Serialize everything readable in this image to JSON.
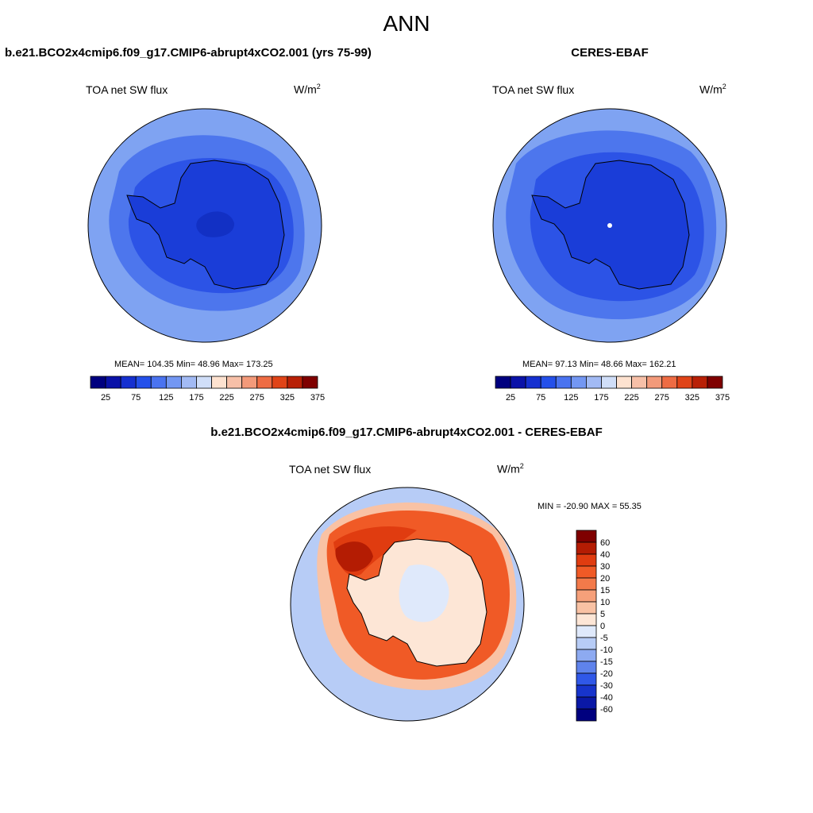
{
  "figure": {
    "title": "ANN"
  },
  "panels": {
    "model": {
      "title": "b.e21.BCO2x4cmip6.f09_g17.CMIP6-abrupt4xCO2.001 (yrs 75-99)",
      "variable": "TOA net SW flux",
      "units": "W/m",
      "units_sup": "2",
      "stats": "MEAN= 104.35  Min=  48.96  Max= 173.25"
    },
    "obs": {
      "title": "CERES-EBAF",
      "variable": "TOA net SW flux",
      "units": "W/m",
      "units_sup": "2",
      "stats": "MEAN=  97.13  Min=  48.66  Max= 162.21"
    },
    "diff": {
      "title": "b.e21.BCO2x4cmip6.f09_g17.CMIP6-abrupt4xCO2.001 - CERES-EBAF",
      "variable": "TOA net SW flux",
      "units": "W/m",
      "units_sup": "2",
      "stats": "MIN = -20.90 MAX =  55.35"
    }
  },
  "colorbars": {
    "main": {
      "tick_labels": [
        "25",
        "75",
        "125",
        "175",
        "225",
        "275",
        "325",
        "375"
      ],
      "colors": [
        "#00007f",
        "#0a12a8",
        "#1530d0",
        "#2450ea",
        "#4a73f0",
        "#7397f2",
        "#a2baf4",
        "#d0def8",
        "#fde2d0",
        "#f7c0a8",
        "#f39a7a",
        "#ee6c44",
        "#e04418",
        "#b82006",
        "#7f0000"
      ]
    },
    "diff": {
      "tick_labels": [
        "60",
        "40",
        "30",
        "20",
        "15",
        "10",
        "5",
        "0",
        "-5",
        "-10",
        "-15",
        "-20",
        "-30",
        "-40",
        "-60"
      ],
      "colors": [
        "#7f0000",
        "#b41c03",
        "#e03c10",
        "#f05a26",
        "#f37a4a",
        "#f6a07a",
        "#f9c2a4",
        "#fde6d6",
        "#dfe9fb",
        "#b7ccf6",
        "#8daaf1",
        "#5f83ec",
        "#3058e8",
        "#1734cc",
        "#0a18a6",
        "#00007f"
      ]
    }
  },
  "maps": {
    "model": {
      "description": "Antarctic polar stereographic map; blue fields",
      "colors": {
        "ocean_outer": "#7fa3f2",
        "ocean_mid": "#4d76ed",
        "near_coast": "#2c53e6",
        "continent": "#1a3dd8",
        "interior_min": "#1230c4"
      }
    },
    "obs": {
      "colors": {
        "ocean_outer": "#7fa3f2",
        "ocean_mid": "#4d76ed",
        "near_coast": "#2c53e6",
        "continent": "#1a3dd8"
      }
    },
    "diff": {
      "colors": {
        "outer": "#b7ccf6",
        "ring": "#f05a26",
        "ring_strong": "#e03c10",
        "max": "#b41c03",
        "continent": "#fde6d6",
        "interior": "#dfe9fb"
      }
    }
  }
}
